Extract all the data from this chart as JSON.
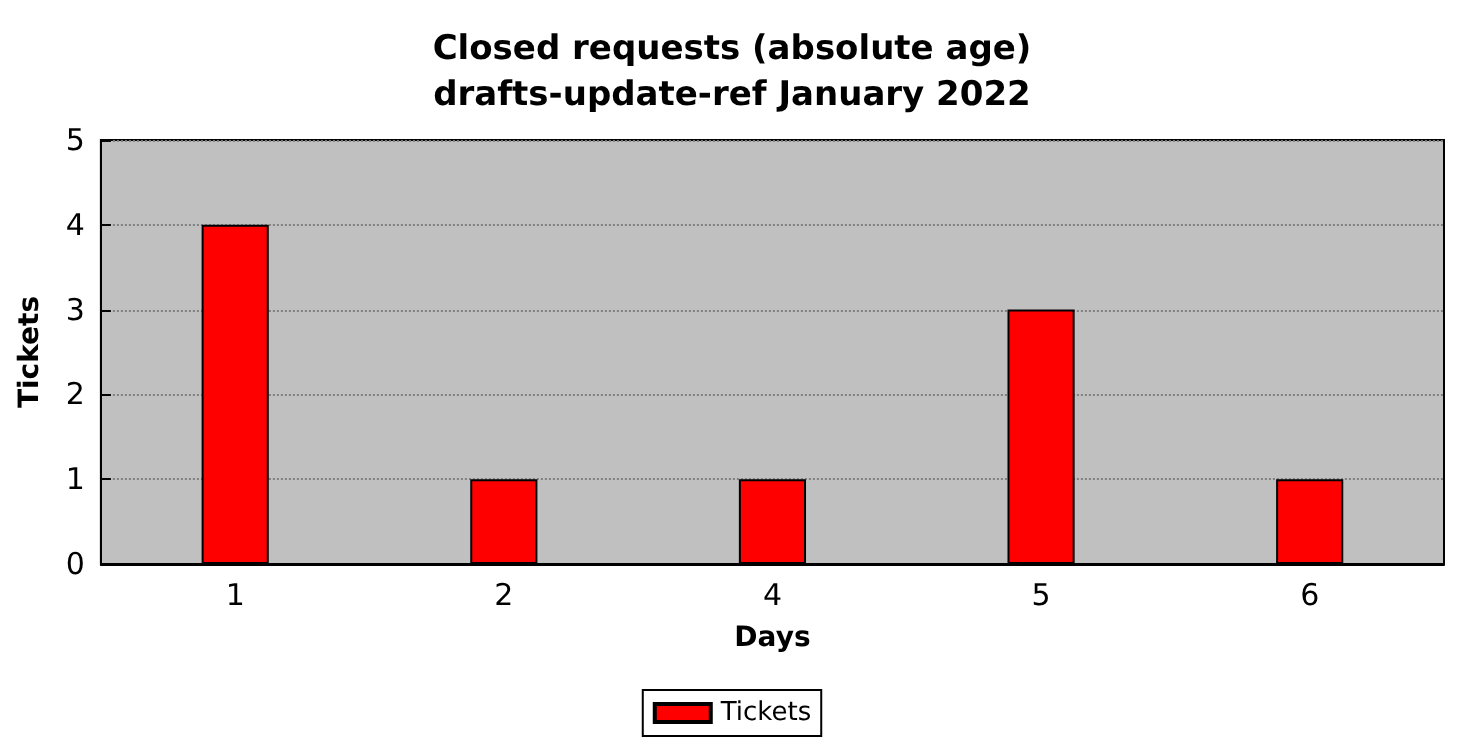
{
  "chart_data": {
    "type": "bar",
    "title": "Closed requests (absolute age)\ndrafts-update-ref January 2022",
    "xlabel": "Days",
    "ylabel": "Tickets",
    "categories": [
      "1",
      "2",
      "4",
      "5",
      "6"
    ],
    "series": [
      {
        "name": "Tickets",
        "color": "#ff0000",
        "values": [
          4,
          1,
          1,
          3,
          1
        ]
      }
    ],
    "ylim": [
      0,
      5
    ],
    "yticks": [
      0,
      1,
      2,
      3,
      4,
      5
    ],
    "grid": "y",
    "legend": "bottom"
  }
}
